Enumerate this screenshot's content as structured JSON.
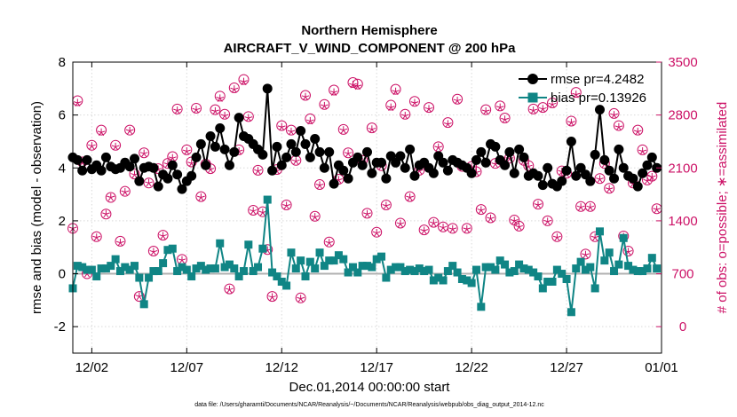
{
  "chart_data": {
    "type": "line",
    "title": "Northern Hemisphere",
    "subtitle": "AIRCRAFT_V_WIND_COMPONENT @ 200 hPa",
    "xlabel": "Dec.01,2014 00:00:00 start",
    "ylabel_left": "rmse and bias (model - observation)",
    "ylabel_right": "# of obs: o=possible; ∗=assimilated",
    "footnote": "data file: /Users/gharamti/Documents/NCAR/Reanalysis/~/Documents/NCAR/Reanalysis/webpub/obs_diag_output_2014-12.nc",
    "xlim": [
      0,
      124
    ],
    "ylim_left": [
      -3,
      8
    ],
    "ylim_right": [
      -350,
      3500
    ],
    "x_ticks": [
      {
        "x": 4,
        "label": "12/02"
      },
      {
        "x": 24,
        "label": "12/07"
      },
      {
        "x": 44,
        "label": "12/12"
      },
      {
        "x": 64,
        "label": "12/17"
      },
      {
        "x": 84,
        "label": "12/22"
      },
      {
        "x": 104,
        "label": "12/27"
      },
      {
        "x": 124,
        "label": "01/01"
      }
    ],
    "y_ticks_left": [
      {
        "v": -2,
        "label": "-2"
      },
      {
        "v": 0,
        "label": "0"
      },
      {
        "v": 2,
        "label": "2"
      },
      {
        "v": 4,
        "label": "4"
      },
      {
        "v": 6,
        "label": "6"
      },
      {
        "v": 8,
        "label": "8"
      }
    ],
    "y_ticks_right": [
      {
        "v": 0,
        "label": "0"
      },
      {
        "v": 700,
        "label": "700"
      },
      {
        "v": 1400,
        "label": "1400"
      },
      {
        "v": 2100,
        "label": "2100"
      },
      {
        "v": 2800,
        "label": "2800"
      },
      {
        "v": 3500,
        "label": "3500"
      }
    ],
    "x": [
      0,
      1,
      2,
      3,
      4,
      5,
      6,
      7,
      8,
      9,
      10,
      11,
      12,
      13,
      14,
      15,
      16,
      17,
      18,
      19,
      20,
      21,
      22,
      23,
      24,
      25,
      26,
      27,
      28,
      29,
      30,
      31,
      32,
      33,
      34,
      35,
      36,
      37,
      38,
      39,
      40,
      41,
      42,
      43,
      44,
      45,
      46,
      47,
      48,
      49,
      50,
      51,
      52,
      53,
      54,
      55,
      56,
      57,
      58,
      59,
      60,
      61,
      62,
      63,
      64,
      65,
      66,
      67,
      68,
      69,
      70,
      71,
      72,
      73,
      74,
      75,
      76,
      77,
      78,
      79,
      80,
      81,
      82,
      83,
      84,
      85,
      86,
      87,
      88,
      89,
      90,
      91,
      92,
      93,
      94,
      95,
      96,
      97,
      98,
      99,
      100,
      101,
      102,
      103,
      104,
      105,
      106,
      107,
      108,
      109,
      110,
      111,
      112,
      113,
      114,
      115,
      116,
      117,
      118,
      119,
      120,
      121,
      122,
      123
    ],
    "series": [
      {
        "name": "rmse",
        "legend": "rmse pr=4.2482",
        "color": "#000000",
        "axis": "left",
        "values": [
          4.4,
          4.3,
          3.9,
          4.3,
          3.95,
          4.1,
          3.9,
          4.4,
          4.05,
          3.95,
          4.0,
          4.2,
          4.05,
          4.35,
          3.5,
          4.0,
          4.05,
          4.0,
          3.3,
          3.75,
          3.6,
          4.1,
          3.75,
          3.2,
          3.5,
          3.7,
          4.4,
          4.9,
          4.1,
          5.2,
          4.8,
          5.5,
          4.7,
          4.1,
          4.6,
          5.9,
          5.2,
          5.1,
          4.9,
          4.7,
          4.5,
          7.0,
          3.9,
          4.8,
          4.1,
          4.4,
          4.9,
          4.6,
          5.4,
          4.9,
          4.4,
          5.1,
          4.6,
          4.0,
          4.6,
          3.4,
          4.1,
          3.9,
          3.6,
          4.2,
          4.4,
          4.1,
          4.6,
          3.8,
          4.2,
          4.2,
          3.6,
          4.45,
          4.2,
          4.45,
          4.0,
          4.7,
          3.7,
          4.1,
          4.2,
          4.0,
          3.8,
          4.45,
          4.2,
          3.9,
          4.3,
          4.2,
          4.1,
          4.0,
          3.8,
          4.3,
          4.6,
          4.2,
          4.9,
          4.8,
          4.3,
          4.1,
          4.6,
          3.8,
          4.7,
          4.4,
          3.7,
          3.8,
          3.7,
          3.35,
          4.0,
          3.4,
          3.3,
          3.5,
          3.9,
          5.0,
          3.7,
          4.0,
          3.75,
          3.5,
          4.5,
          6.2,
          4.3,
          3.9,
          3.6,
          4.7,
          4.0,
          3.7,
          3.6,
          3.3,
          3.8,
          4.1,
          4.4,
          4.0
        ]
      },
      {
        "name": "bias",
        "legend": "bias pr=0.13926",
        "color": "#108585",
        "axis": "left",
        "values": [
          -0.55,
          0.3,
          0.25,
          0.15,
          0.15,
          -0.1,
          0.2,
          0.2,
          0.3,
          0.55,
          0.1,
          0.25,
          0.15,
          0.3,
          -0.15,
          -1.15,
          -0.15,
          0.1,
          0.1,
          0.4,
          0.9,
          0.95,
          0.1,
          0.25,
          0.15,
          -0.1,
          0.2,
          0.3,
          0.15,
          0.2,
          0.2,
          1.15,
          0.25,
          0.35,
          0.2,
          -0.1,
          0.1,
          1.1,
          0.1,
          0.25,
          0.95,
          2.8,
          0.05,
          -0.1,
          -0.3,
          -0.45,
          0.8,
          0.2,
          0.5,
          -0.1,
          0.45,
          0.2,
          0.8,
          0.3,
          0.5,
          0.5,
          0.7,
          0.55,
          0.05,
          0.25,
          0.05,
          0.3,
          0.3,
          0.25,
          0.55,
          0.65,
          -0.15,
          0.15,
          0.25,
          0.25,
          0.1,
          0.15,
          0.1,
          0.2,
          0.1,
          0.15,
          -0.25,
          -0.15,
          -0.25,
          0.1,
          0.3,
          0.05,
          -0.2,
          -0.25,
          -0.35,
          0.15,
          -1.25,
          0.25,
          0.25,
          0.15,
          0.5,
          0.35,
          0.05,
          0.1,
          0.35,
          0.2,
          0.15,
          0.05,
          -0.1,
          -0.55,
          -0.3,
          -0.3,
          0.15,
          0.0,
          -0.2,
          -1.45,
          0.2,
          0.45,
          0.15,
          0.25,
          -0.55,
          1.6,
          0.5,
          0.8,
          0.1,
          0.35,
          1.35,
          0.3,
          0.15,
          0.1,
          0.1,
          0.2,
          0.6,
          0.2
        ]
      }
    ],
    "obs_possible": {
      "legend": "o=possible",
      "color": "#cc1166",
      "values": [
        1300,
        2990,
        2180,
        700,
        2400,
        1190,
        2600,
        1490,
        1710,
        2400,
        1130,
        1790,
        2600,
        2020,
        400,
        2300,
        1900,
        1000,
        2090,
        1210,
        2160,
        2250,
        2880,
        890,
        2340,
        2180,
        2890,
        1720,
        2150,
        2090,
        2870,
        3050,
        2810,
        500,
        3160,
        2340,
        3270,
        2780,
        1540,
        2070,
        1520,
        1020,
        400,
        2080,
        2660,
        1610,
        2600,
        2200,
        380,
        3060,
        2750,
        1460,
        1880,
        2940,
        1120,
        3130,
        1950,
        2610,
        2300,
        3230,
        3210,
        2200,
        1500,
        2630,
        1250,
        2130,
        1610,
        2930,
        3140,
        1370,
        2810,
        1720,
        2980,
        2070,
        1280,
        2900,
        1380,
        2380,
        1320,
        2700,
        1300,
        3010,
        2120,
        1300,
        2120,
        2050,
        1550,
        2870,
        1440,
        2160,
        2920,
        2760,
        2230,
        1410,
        1330,
        2200,
        2130,
        2880,
        1620,
        2900,
        1400,
        2960,
        1190,
        2060,
        2030,
        2720,
        3100,
        1590,
        960,
        1590,
        1190,
        1960,
        2160,
        1830,
        2820,
        2660,
        1200,
        1000,
        1900,
        2600,
        2340,
        1940,
        1990,
        1560
      ]
    },
    "obs_assimilated": {
      "legend": "∗=assimilated",
      "color": "#cc1166",
      "values": [
        1300,
        2960,
        2170,
        700,
        2390,
        1180,
        2570,
        1490,
        1710,
        2380,
        1110,
        1780,
        2590,
        2010,
        400,
        2290,
        1900,
        990,
        2080,
        1200,
        2150,
        2230,
        2860,
        880,
        2320,
        2160,
        2870,
        1710,
        2140,
        2080,
        2850,
        3020,
        2790,
        490,
        3140,
        2320,
        3240,
        2760,
        1530,
        2060,
        1510,
        1010,
        390,
        2060,
        2640,
        1600,
        2580,
        2190,
        370,
        3040,
        2720,
        1450,
        1870,
        2920,
        1110,
        3100,
        1940,
        2600,
        2290,
        3200,
        3180,
        2180,
        1490,
        2610,
        1240,
        2120,
        1600,
        2900,
        3110,
        1360,
        2790,
        1710,
        2960,
        2060,
        1270,
        2880,
        1370,
        2370,
        1310,
        2680,
        1290,
        2990,
        2110,
        1290,
        2110,
        2040,
        1540,
        2850,
        1430,
        2150,
        2900,
        2740,
        2220,
        1400,
        1320,
        2190,
        2120,
        2860,
        1610,
        2880,
        1390,
        2940,
        1180,
        2050,
        2020,
        2700,
        3070,
        1580,
        950,
        1580,
        1180,
        1950,
        2150,
        1820,
        2800,
        2640,
        1190,
        990,
        1890,
        2580,
        2320,
        1930,
        1980,
        1550
      ]
    }
  }
}
